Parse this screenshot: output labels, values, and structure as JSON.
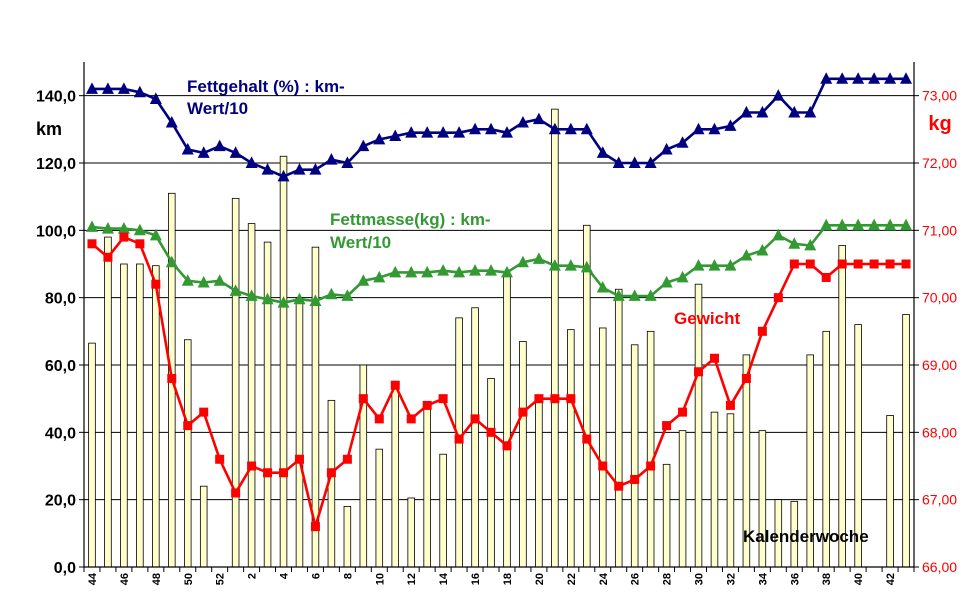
{
  "chart_data": {
    "type": "bar+line",
    "x_tick_labels": [
      "44",
      "",
      "46",
      "",
      "48",
      "",
      "50",
      "",
      "52",
      "",
      "2",
      "",
      "4",
      "",
      "6",
      "",
      "8",
      "",
      "10",
      "",
      "12",
      "",
      "14",
      "",
      "16",
      "",
      "18",
      "",
      "20",
      "",
      "22",
      "",
      "24",
      "",
      "26",
      "",
      "28",
      "",
      "30",
      "",
      "32",
      "",
      "34",
      "",
      "36",
      "",
      "38",
      "",
      "40",
      "",
      "42",
      ""
    ],
    "left_axis": {
      "label": "km",
      "ylim": [
        0,
        150
      ],
      "tick_labels": [
        "0,0",
        "20,0",
        "40,0",
        "60,0",
        "80,0",
        "100,0",
        "120,0",
        "140,0"
      ],
      "tick_values": [
        0,
        20,
        40,
        60,
        80,
        100,
        120,
        140
      ]
    },
    "right_axis": {
      "label": "kg",
      "ylim": [
        66,
        73.5
      ],
      "tick_labels": [
        "66,00",
        "67,00",
        "68,00",
        "69,00",
        "70,00",
        "71,00",
        "72,00",
        "73,00"
      ],
      "tick_values": [
        66,
        67,
        68,
        69,
        70,
        71,
        72,
        73
      ]
    },
    "grid": "horizontal",
    "bars": {
      "axis": "left",
      "color": "#FFFFCC",
      "values": [
        66.5,
        98,
        90,
        90,
        89.5,
        111,
        67.5,
        24,
        0,
        109.5,
        102,
        96.5,
        122,
        80,
        95,
        49.5,
        18,
        60,
        35,
        53,
        20.5,
        49,
        33.5,
        74,
        77,
        56,
        87,
        67,
        51,
        136,
        70.5,
        101.5,
        71,
        82.5,
        66,
        70,
        30.5,
        40.5,
        84,
        46,
        45.5,
        63,
        40.5,
        20,
        19.5,
        63,
        70,
        95.5,
        72,
        0,
        45,
        75
      ]
    },
    "series": [
      {
        "name": "Fettgehalt (%) : km-Wert/10",
        "axis": "left",
        "color": "#000080",
        "marker": "triangle",
        "values": [
          142,
          142,
          142,
          141,
          139,
          132,
          124,
          123,
          125,
          123,
          120,
          118,
          116,
          118,
          118,
          121,
          120,
          125,
          127,
          128,
          129,
          129,
          129,
          129,
          130,
          130,
          129,
          132,
          133,
          130,
          130,
          130,
          123,
          120,
          120,
          120,
          124,
          126,
          130,
          130,
          131,
          135,
          135,
          140,
          135,
          135,
          145,
          145,
          145,
          145,
          145,
          145
        ]
      },
      {
        "name": "Fettmasse(kg) : km-Wert/10",
        "axis": "left",
        "color": "#339933",
        "marker": "triangle",
        "values": [
          101,
          100.5,
          100.5,
          100,
          98.5,
          90.5,
          85,
          84.5,
          85,
          82,
          80.5,
          79.5,
          78.5,
          79.5,
          79,
          81,
          80.5,
          85,
          86,
          87.5,
          87.5,
          87.5,
          88,
          87.5,
          88,
          88,
          87.5,
          90.5,
          91.5,
          89.5,
          89.5,
          89,
          83,
          80.5,
          80.5,
          80.5,
          84.5,
          86,
          89.5,
          89.5,
          89.5,
          92.5,
          94,
          98.5,
          96,
          95.5,
          101.5,
          101.5,
          101.5,
          101.5,
          101.5,
          101.5
        ]
      },
      {
        "name": "Gewicht",
        "axis": "right",
        "color": "#FF0000",
        "marker": "square",
        "values": [
          70.8,
          70.6,
          70.9,
          70.8,
          70.2,
          68.8,
          68.1,
          68.3,
          67.6,
          67.1,
          67.5,
          67.4,
          67.4,
          67.6,
          66.6,
          67.4,
          67.6,
          68.5,
          68.2,
          68.7,
          68.2,
          68.4,
          68.5,
          67.9,
          68.2,
          68.0,
          67.8,
          68.3,
          68.5,
          68.5,
          68.5,
          67.9,
          67.5,
          67.2,
          67.3,
          67.5,
          68.1,
          68.3,
          68.9,
          69.1,
          68.4,
          68.8,
          69.5,
          70.0,
          70.5,
          70.5,
          70.3,
          70.5,
          70.5,
          70.5,
          70.5,
          70.5
        ]
      }
    ],
    "annotations": [
      {
        "text_lines": [
          "Fettgehalt (%) : km-",
          "Wert/10"
        ],
        "color": "#000080"
      },
      {
        "text_lines": [
          "Fettmasse(kg) : km-",
          "Wert/10"
        ],
        "color": "#339933"
      },
      {
        "text_lines": [
          "Gewicht"
        ],
        "color": "#FF0000"
      },
      {
        "text_lines": [
          "Kalenderwoche"
        ],
        "color": "#000000"
      }
    ]
  }
}
